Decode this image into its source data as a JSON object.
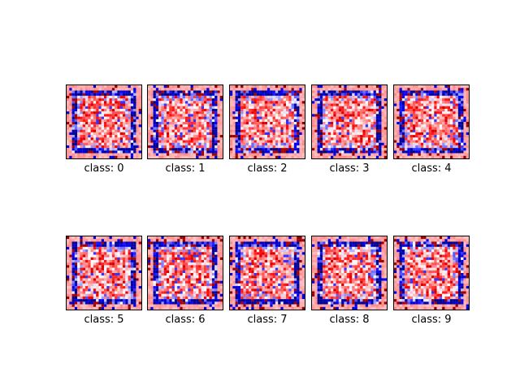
{
  "chart_data": {
    "type": "heatmap",
    "colormap": "seismic",
    "grid": false,
    "image_size": [
      28,
      28
    ],
    "panels": [
      {
        "class": 0,
        "label": "class: 0"
      },
      {
        "class": 1,
        "label": "class: 1"
      },
      {
        "class": 2,
        "label": "class: 2"
      },
      {
        "class": 3,
        "label": "class: 3"
      },
      {
        "class": 4,
        "label": "class: 4"
      },
      {
        "class": 5,
        "label": "class: 5"
      },
      {
        "class": 6,
        "label": "class: 6"
      },
      {
        "class": 7,
        "label": "class: 7"
      },
      {
        "class": 8,
        "label": "class: 8"
      },
      {
        "class": 9,
        "label": "class: 9"
      }
    ]
  }
}
